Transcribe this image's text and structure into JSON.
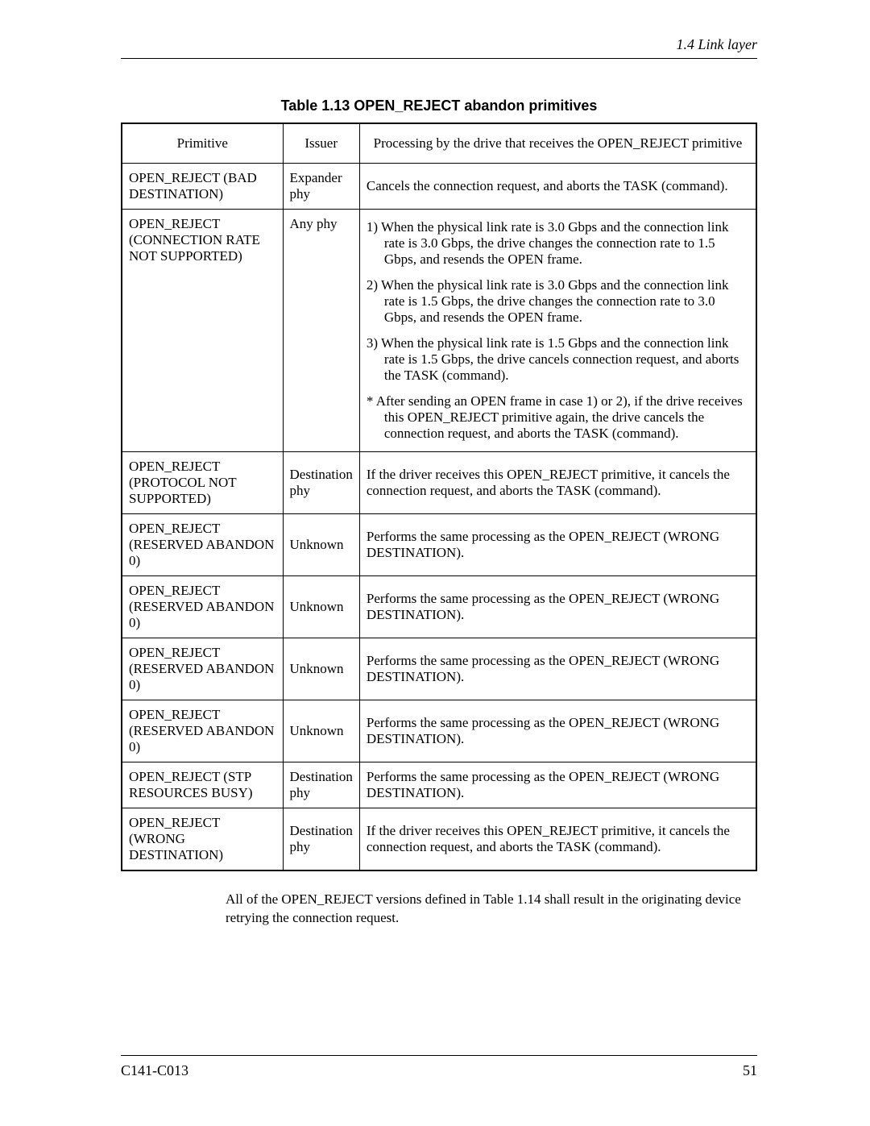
{
  "header": {
    "section": "1.4   Link layer"
  },
  "caption": "Table 1.13  OPEN_REJECT abandon primitives",
  "columns": [
    "Primitive",
    "Issuer",
    "Processing by the drive that receives the OPEN_REJECT primitive"
  ],
  "rows": [
    {
      "primitive": "OPEN_REJECT (BAD DESTINATION)",
      "issuer": "Expander phy",
      "processing": "Cancels the connection request, and aborts the TASK (command)."
    },
    {
      "primitive": "OPEN_REJECT (CONNECTION RATE NOT SUPPORTED)",
      "issuer": "Any phy",
      "processing_lines": [
        "1)  When the physical link rate is 3.0 Gbps and the connection link rate is 3.0 Gbps, the drive changes the connection rate to 1.5 Gbps, and resends the OPEN frame.",
        "2)  When the physical link rate is 3.0 Gbps and the connection link rate is 1.5 Gbps, the drive changes the connection rate to 3.0 Gbps, and resends the OPEN frame.",
        "3)  When the physical link rate is 1.5 Gbps and the connection link rate is 1.5 Gbps, the drive cancels connection request, and aborts the TASK (command).",
        "*    After sending an OPEN frame in case 1) or 2), if the drive receives this OPEN_REJECT primitive again, the drive cancels the connection request, and aborts the TASK (command)."
      ]
    },
    {
      "primitive": "OPEN_REJECT (PROTOCOL NOT SUPPORTED)",
      "issuer": "Destination phy",
      "processing": "If the driver receives this OPEN_REJECT primitive, it cancels the connection request, and aborts the TASK (command)."
    },
    {
      "primitive": "OPEN_REJECT (RESERVED ABANDON 0)",
      "issuer": "Unknown",
      "processing": "Performs the same processing as the OPEN_REJECT (WRONG DESTINATION)."
    },
    {
      "primitive": "OPEN_REJECT (RESERVED ABANDON 0)",
      "issuer": "Unknown",
      "processing": "Performs the same processing as the OPEN_REJECT (WRONG DESTINATION)."
    },
    {
      "primitive": "OPEN_REJECT (RESERVED ABANDON 0)",
      "issuer": "Unknown",
      "processing": "Performs the same processing as the OPEN_REJECT (WRONG DESTINATION)."
    },
    {
      "primitive": "OPEN_REJECT (RESERVED ABANDON 0)",
      "issuer": "Unknown",
      "processing": "Performs the same processing as the OPEN_REJECT (WRONG DESTINATION)."
    },
    {
      "primitive": "OPEN_REJECT (STP RESOURCES BUSY)",
      "issuer": "Destination phy",
      "processing": "Performs the same processing as the OPEN_REJECT (WRONG DESTINATION)."
    },
    {
      "primitive": "OPEN_REJECT (WRONG DESTINATION)",
      "issuer": "Destination phy",
      "processing": "If the driver receives this OPEN_REJECT primitive, it cancels the connection request, and aborts the TASK (command)."
    }
  ],
  "body_text": "All of the OPEN_REJECT versions defined in Table 1.14 shall result in the originating device retrying the connection request.",
  "footer": {
    "doc": "C141-C013",
    "page": "51"
  }
}
